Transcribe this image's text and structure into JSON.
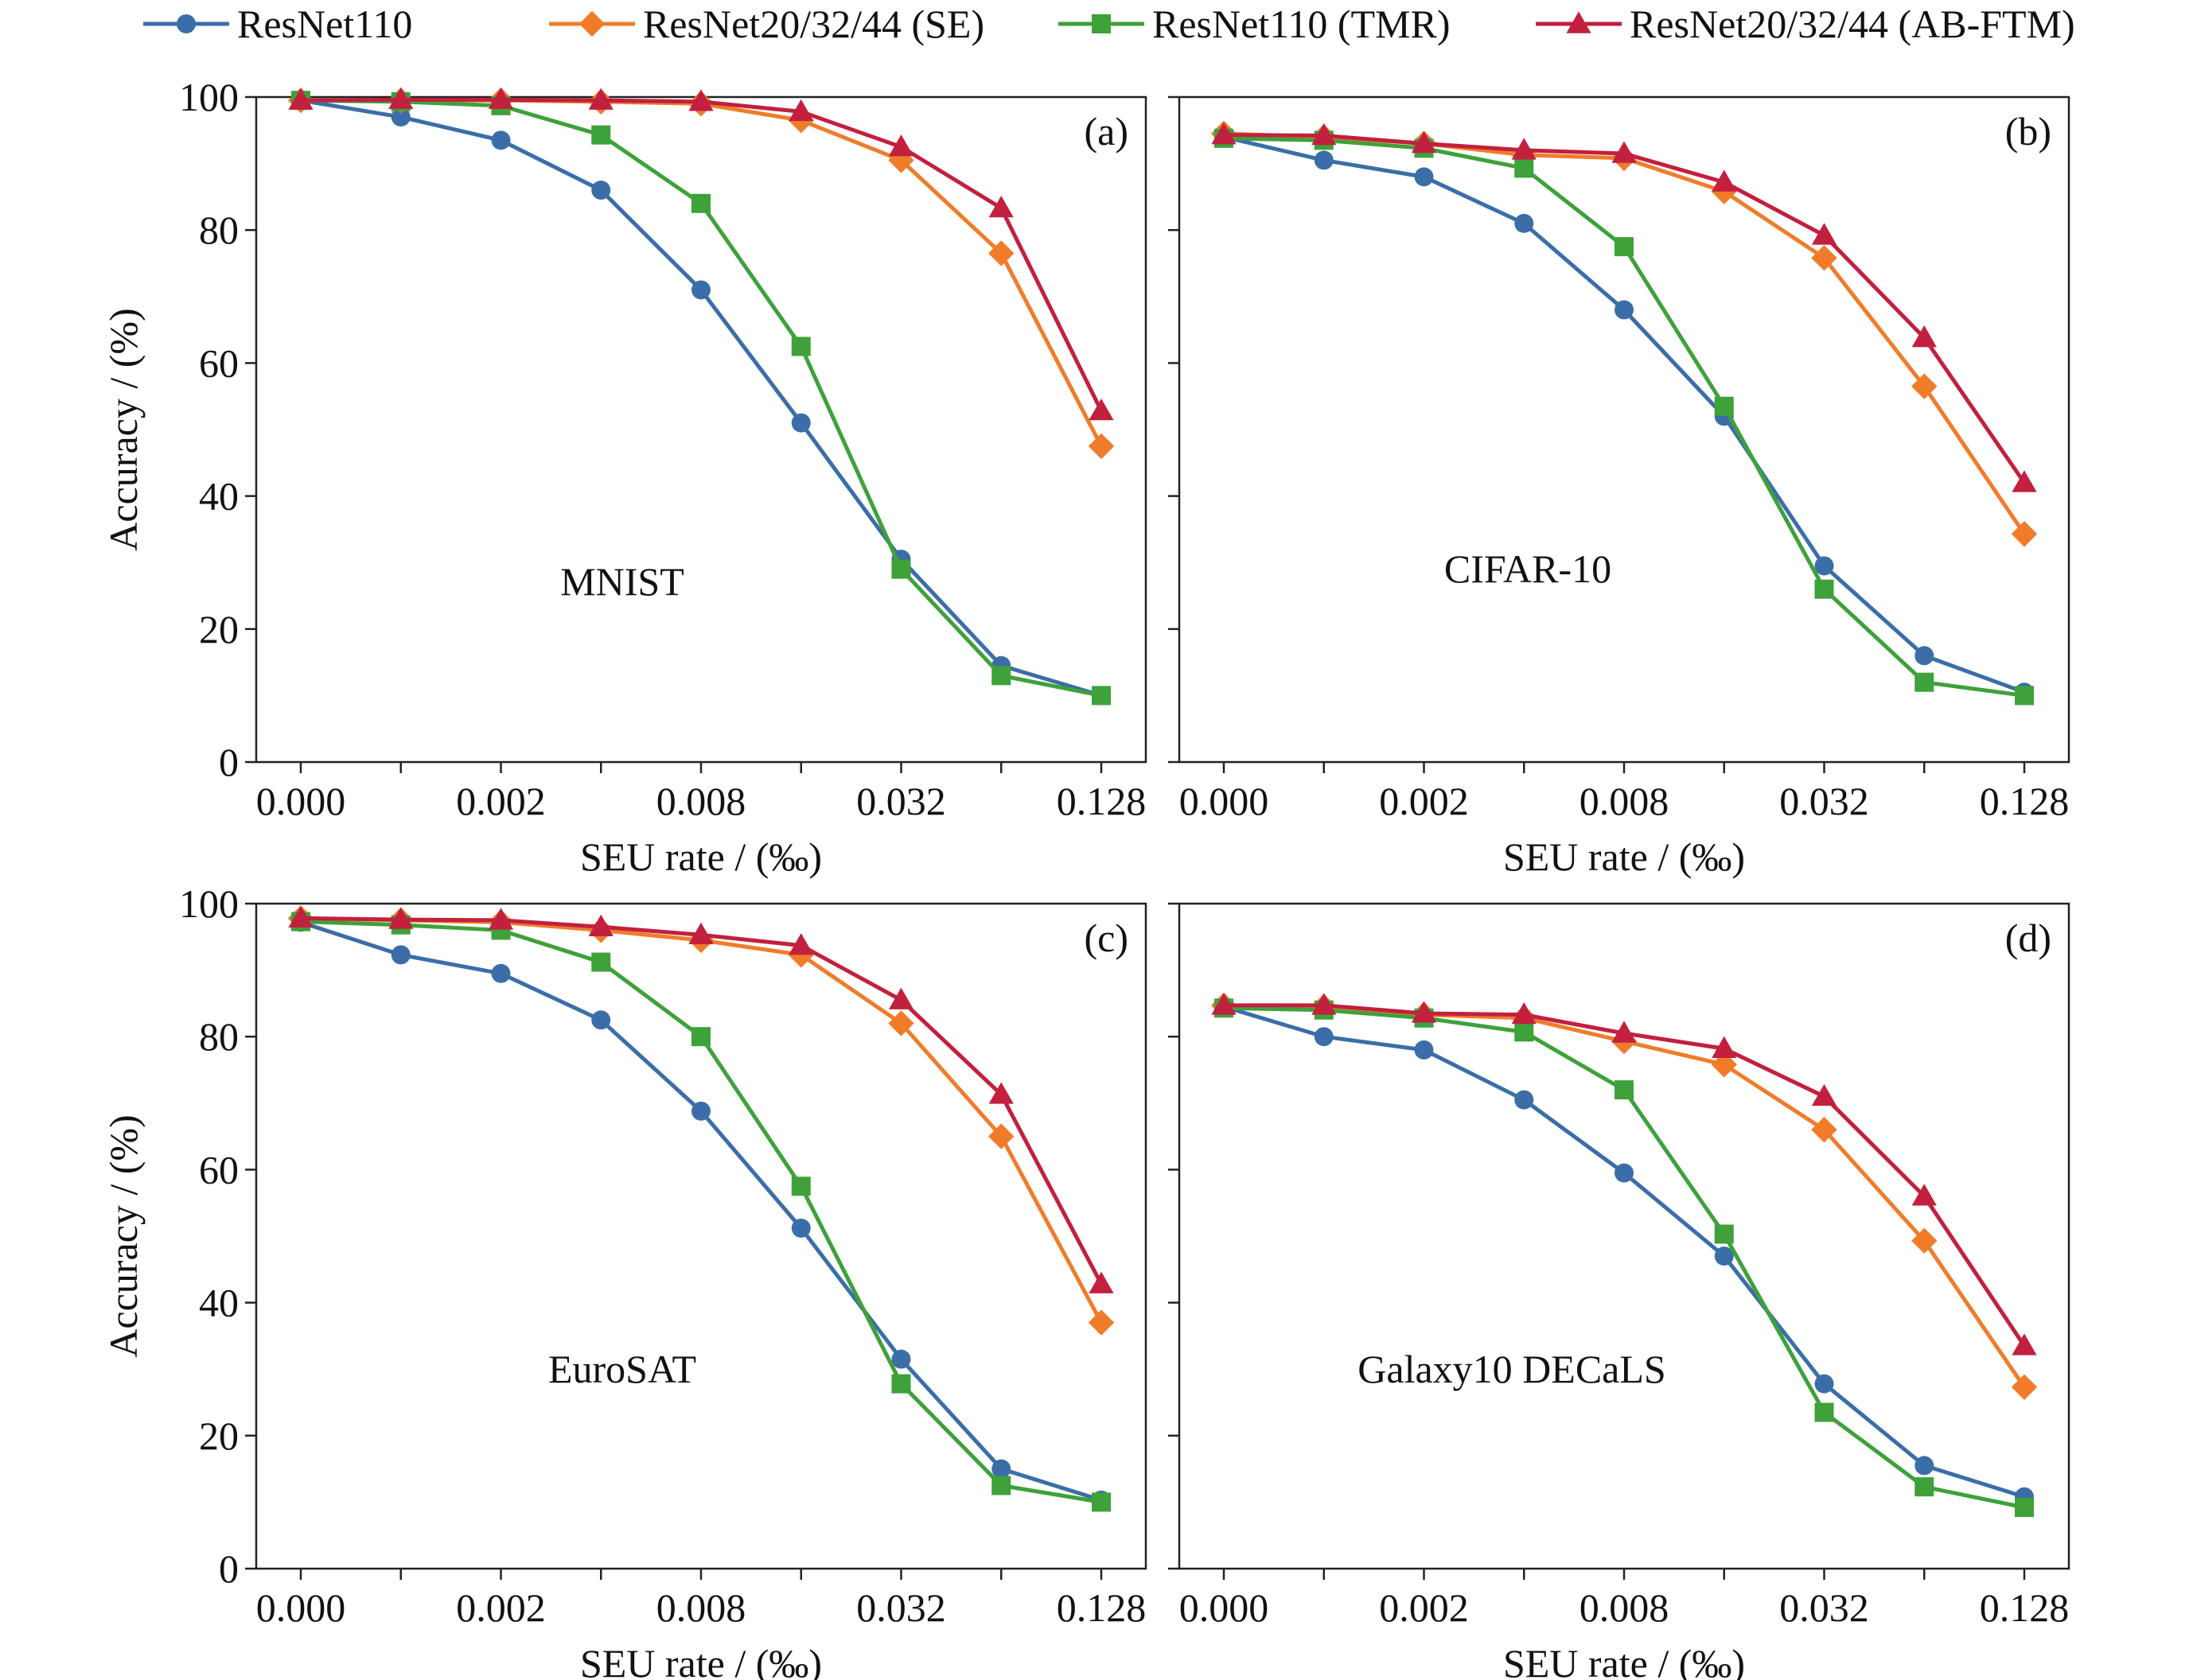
{
  "legend": [
    {
      "label": "ResNet110",
      "color": "#3b6ea8",
      "marker": "circle"
    },
    {
      "label": "ResNet20/32/44 (SE)",
      "color": "#f07c2a",
      "marker": "diamond"
    },
    {
      "label": "ResNet110 (TMR)",
      "color": "#3ea13a",
      "marker": "square"
    },
    {
      "label": "ResNet20/32/44 (AB-FTM)",
      "color": "#c2203e",
      "marker": "triangle"
    }
  ],
  "chart_data": [
    {
      "type": "line",
      "panel": "(a)",
      "dataset_label": "MNIST",
      "xlabel": "SEU rate / (‰)",
      "ylabel": "Accuracy / (%)",
      "x_tick_labels": [
        "0.000",
        "0.002",
        "0.008",
        "0.032",
        "0.128"
      ],
      "y_tick_labels": [
        "0",
        "20",
        "40",
        "60",
        "80",
        "100"
      ],
      "ylim": [
        0,
        100
      ],
      "x_scale": "log2 (tick labels at every other point; point 0 is 0.000)",
      "x_points": [
        "0.000",
        "0.001",
        "0.002",
        "0.004",
        "0.008",
        "0.016",
        "0.032",
        "0.064",
        "0.128"
      ],
      "series": [
        {
          "name": "ResNet110",
          "values": [
            99.5,
            97,
            93.5,
            86,
            71,
            51,
            30.5,
            14.5,
            10
          ]
        },
        {
          "name": "ResNet20/32/44 (SE)",
          "values": [
            99.5,
            99.5,
            99.5,
            99.3,
            99,
            96.5,
            90.5,
            76.5,
            47.5
          ]
        },
        {
          "name": "ResNet110 (TMR)",
          "values": [
            99.5,
            99.3,
            98.7,
            94.3,
            84,
            62.5,
            29,
            13,
            10
          ]
        },
        {
          "name": "ResNet20/32/44 (AB-FTM)",
          "values": [
            99.5,
            99.6,
            99.6,
            99.5,
            99.3,
            97.8,
            92.5,
            83.3,
            52.8
          ]
        }
      ]
    },
    {
      "type": "line",
      "panel": "(b)",
      "dataset_label": "CIFAR-10",
      "xlabel": "SEU rate / (‰)",
      "ylabel": "",
      "x_tick_labels": [
        "0.000",
        "0.002",
        "0.008",
        "0.032",
        "0.128"
      ],
      "y_tick_labels": [],
      "ylim": [
        0,
        100
      ],
      "x_scale": "log2 (tick labels at every other point; point 0 is 0.000)",
      "x_points": [
        "0.000",
        "0.001",
        "0.002",
        "0.004",
        "0.008",
        "0.016",
        "0.032",
        "0.064",
        "0.128"
      ],
      "series": [
        {
          "name": "ResNet110",
          "values": [
            94,
            90.5,
            88,
            81,
            68,
            52,
            29.5,
            16,
            10.5
          ]
        },
        {
          "name": "ResNet20/32/44 (SE)",
          "values": [
            94.5,
            94,
            93,
            91.3,
            90.8,
            85.8,
            75.8,
            56.5,
            34.3
          ]
        },
        {
          "name": "ResNet110 (TMR)",
          "values": [
            93.8,
            93.5,
            92.3,
            89.3,
            77.5,
            53.5,
            26,
            12,
            10
          ]
        },
        {
          "name": "ResNet20/32/44 (AB-FTM)",
          "values": [
            94.3,
            94.2,
            93,
            92,
            91.5,
            87.2,
            79.2,
            63.8,
            42
          ]
        }
      ]
    },
    {
      "type": "line",
      "panel": "(c)",
      "dataset_label": "EuroSAT",
      "xlabel": "SEU rate / (‰)",
      "ylabel": "Accuracy / (%)",
      "x_tick_labels": [
        "0.000",
        "0.002",
        "0.008",
        "0.032",
        "0.128"
      ],
      "y_tick_labels": [
        "0",
        "20",
        "40",
        "60",
        "80",
        "100"
      ],
      "ylim": [
        0,
        100
      ],
      "x_scale": "log2 (tick labels at every other point; point 0 is 0.000)",
      "x_points": [
        "0.000",
        "0.001",
        "0.002",
        "0.004",
        "0.008",
        "0.016",
        "0.032",
        "0.064",
        "0.128"
      ],
      "series": [
        {
          "name": "ResNet110",
          "values": [
            97.2,
            92.3,
            89.5,
            82.5,
            68.8,
            51.2,
            31.5,
            15,
            10.3
          ]
        },
        {
          "name": "ResNet20/32/44 (SE)",
          "values": [
            97.8,
            97.5,
            97.2,
            96,
            94.5,
            92.3,
            82,
            65,
            37
          ]
        },
        {
          "name": "ResNet110 (TMR)",
          "values": [
            97.3,
            96.8,
            96,
            91.2,
            80,
            57.5,
            27.8,
            12.5,
            10
          ]
        },
        {
          "name": "ResNet20/32/44 (AB-FTM)",
          "values": [
            97.8,
            97.6,
            97.5,
            96.5,
            95.3,
            93.7,
            85.5,
            71.3,
            42.8
          ]
        }
      ]
    },
    {
      "type": "line",
      "panel": "(d)",
      "dataset_label": "Galaxy10 DECaLS",
      "xlabel": "SEU rate / (‰)",
      "ylabel": "",
      "x_tick_labels": [
        "0.000",
        "0.002",
        "0.008",
        "0.032",
        "0.128"
      ],
      "y_tick_labels": [],
      "ylim": [
        0,
        100
      ],
      "x_scale": "log2 (tick labels at every other point; point 0 is 0.000)",
      "x_points": [
        "0.000",
        "0.001",
        "0.002",
        "0.004",
        "0.008",
        "0.016",
        "0.032",
        "0.064",
        "0.128"
      ],
      "series": [
        {
          "name": "ResNet110",
          "values": [
            84.5,
            80,
            78,
            70.5,
            59.5,
            47,
            27.8,
            15.5,
            10.8
          ]
        },
        {
          "name": "ResNet20/32/44 (SE)",
          "values": [
            84.7,
            84.5,
            83.3,
            82.8,
            79.3,
            75.8,
            66,
            49.3,
            27.3
          ]
        },
        {
          "name": "ResNet110 (TMR)",
          "values": [
            84.3,
            84,
            82.8,
            80.7,
            72,
            50.3,
            23.5,
            12.3,
            9.2
          ]
        },
        {
          "name": "ResNet20/32/44 (AB-FTM)",
          "values": [
            84.7,
            84.7,
            83.5,
            83.3,
            80.5,
            78.2,
            71,
            56,
            33.5
          ]
        }
      ]
    }
  ]
}
